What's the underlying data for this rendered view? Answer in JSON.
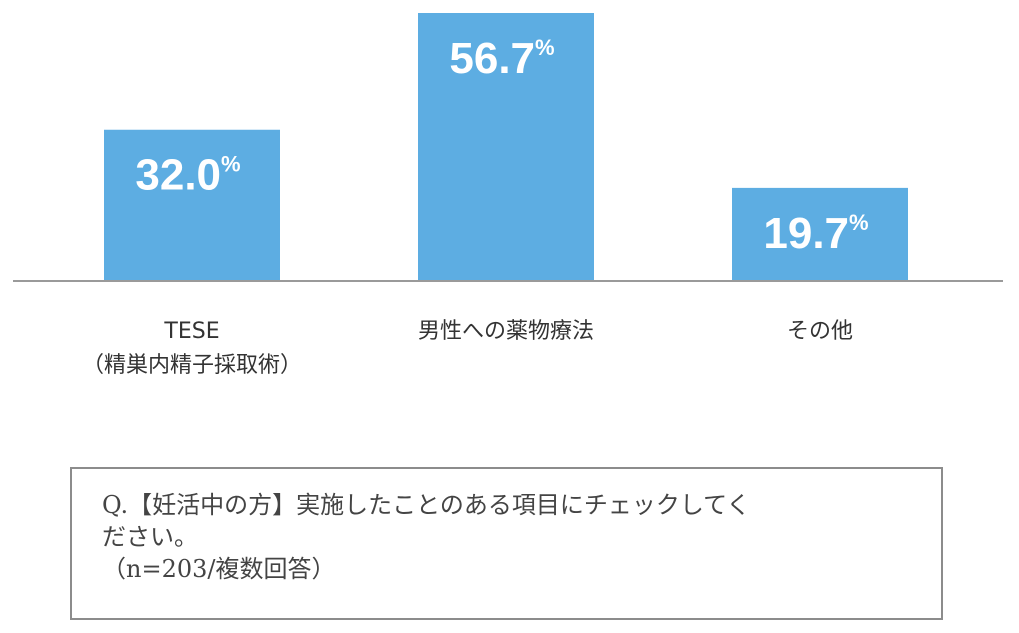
{
  "chart_data": {
    "type": "bar",
    "categories": [
      "TESE\n（精巣内精子採取術）",
      "男性への薬物療法",
      "その他"
    ],
    "values": [
      32.0,
      56.7,
      19.7
    ],
    "value_labels": [
      "32.0",
      "56.7",
      "19.7"
    ],
    "value_suffix": "%",
    "title": "",
    "xlabel": "",
    "ylabel": "",
    "ylim": [
      0,
      60
    ],
    "grid": false,
    "legend": "none"
  },
  "colors": {
    "bar": "#5dade2",
    "baseline": "#9a9a9a"
  },
  "question": {
    "line1": "Q.【妊活中の方】実施したことのある項目にチェックしてく",
    "line2": "ださい。",
    "line3": "（n=203/複数回答）"
  }
}
